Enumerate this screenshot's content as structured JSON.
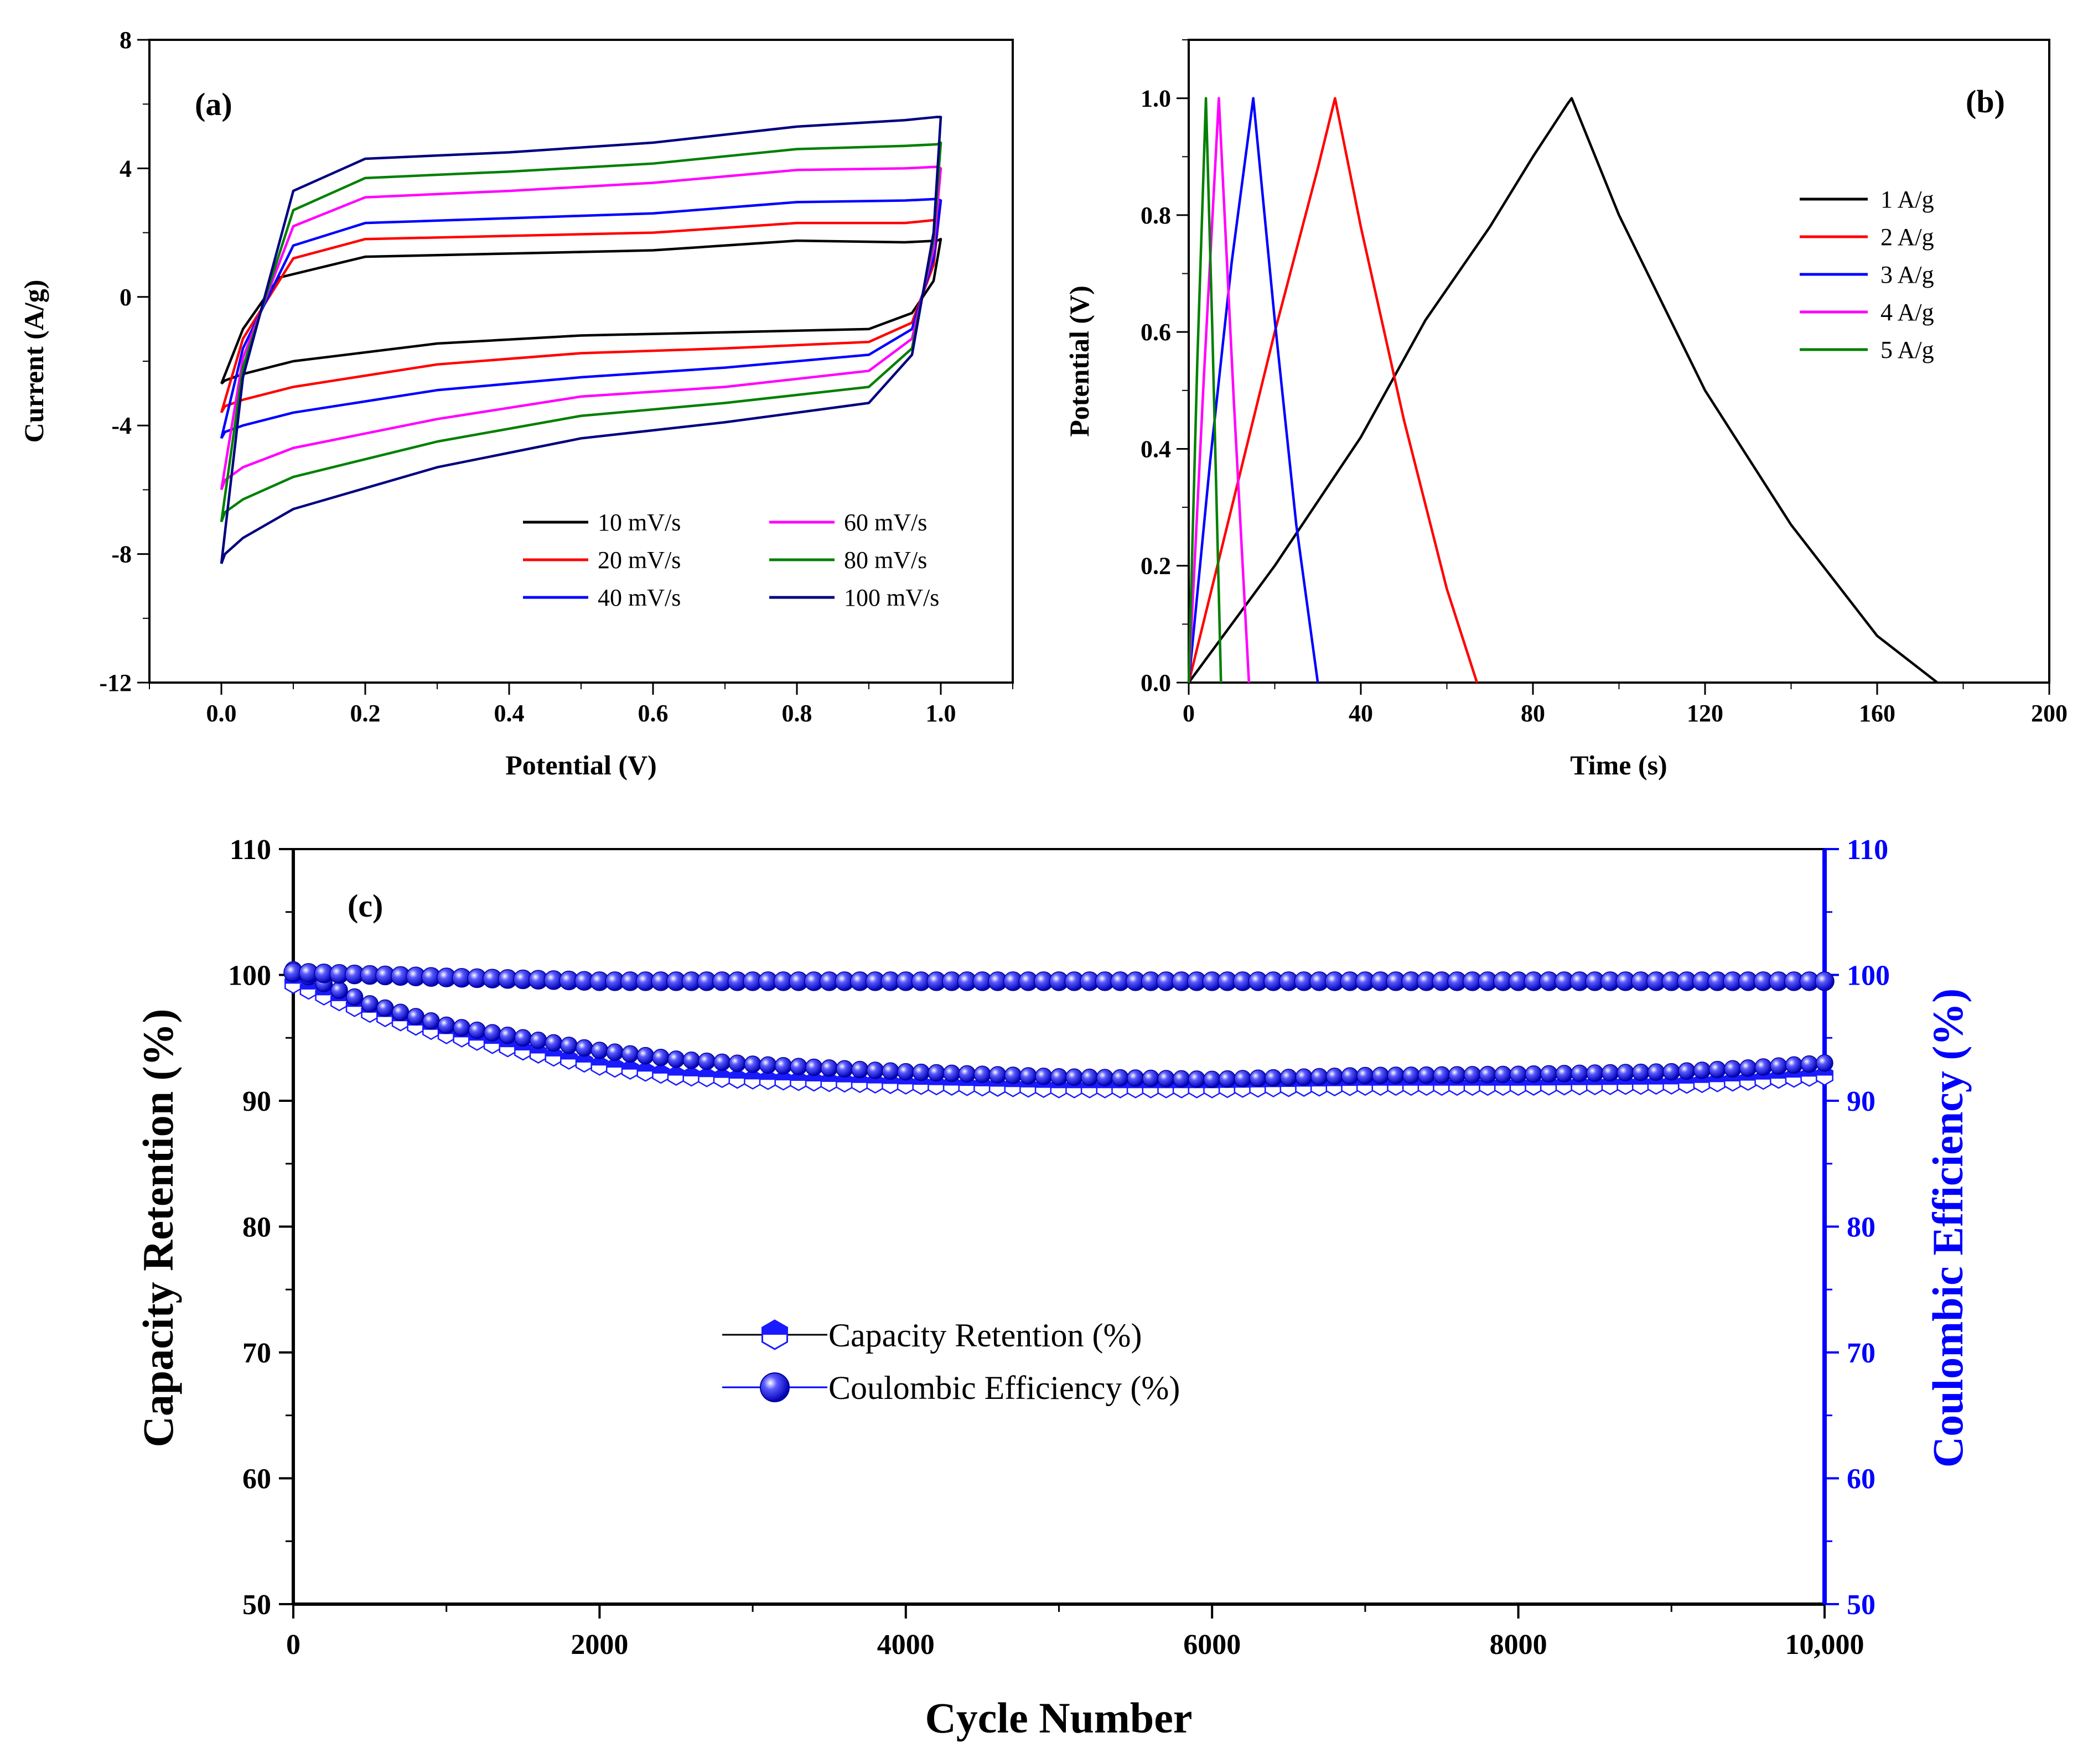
{
  "chart_data": [
    {
      "id": "a",
      "type": "line",
      "panel_label": "(a)",
      "xlabel": "Potential (V)",
      "ylabel": "Current (A/g)",
      "xlim": [
        -0.1,
        1.1
      ],
      "ylim": [
        -12,
        8
      ],
      "xticks": [
        0.0,
        0.2,
        0.4,
        0.6,
        0.8,
        1.0
      ],
      "xtick_labels": [
        "0.0",
        "0.2",
        "0.4",
        "0.6",
        "0.8",
        "1.0"
      ],
      "yticks": [
        -12,
        -8,
        -4,
        0,
        4,
        8
      ],
      "ytick_labels": [
        "-12",
        "-8",
        "-4",
        "0",
        "4",
        "8"
      ],
      "legend_position": "bottom-right",
      "series": [
        {
          "name": "10 mV/s",
          "color": "#000000",
          "x": [
            0.0,
            0.03,
            0.08,
            0.2,
            0.4,
            0.6,
            0.8,
            0.95,
            0.995,
            1.0,
            0.99,
            0.96,
            0.9,
            0.7,
            0.5,
            0.3,
            0.1,
            0.03,
            0.005,
            0.0
          ],
          "y": [
            -2.7,
            -1.0,
            0.6,
            1.25,
            1.35,
            1.45,
            1.75,
            1.7,
            1.75,
            1.8,
            0.5,
            -0.5,
            -1.0,
            -1.1,
            -1.2,
            -1.45,
            -2.0,
            -2.4,
            -2.6,
            -2.7
          ]
        },
        {
          "name": "20 mV/s",
          "color": "#ff0000",
          "x": [
            0.0,
            0.03,
            0.1,
            0.2,
            0.4,
            0.6,
            0.8,
            0.95,
            0.995,
            1.0,
            0.99,
            0.96,
            0.9,
            0.7,
            0.5,
            0.3,
            0.1,
            0.03,
            0.005,
            0.0
          ],
          "y": [
            -3.6,
            -1.3,
            1.2,
            1.8,
            1.9,
            2.0,
            2.3,
            2.3,
            2.4,
            3.0,
            1.0,
            -0.8,
            -1.4,
            -1.6,
            -1.75,
            -2.1,
            -2.8,
            -3.2,
            -3.4,
            -3.6
          ]
        },
        {
          "name": "40 mV/s",
          "color": "#0000ff",
          "x": [
            0.0,
            0.03,
            0.1,
            0.2,
            0.4,
            0.6,
            0.8,
            0.95,
            0.995,
            1.0,
            0.99,
            0.96,
            0.9,
            0.7,
            0.5,
            0.3,
            0.1,
            0.03,
            0.005,
            0.0
          ],
          "y": [
            -4.4,
            -1.6,
            1.6,
            2.3,
            2.45,
            2.6,
            2.95,
            3.0,
            3.05,
            3.0,
            1.2,
            -1.0,
            -1.8,
            -2.2,
            -2.5,
            -2.9,
            -3.6,
            -4.0,
            -4.2,
            -4.4
          ]
        },
        {
          "name": "60 mV/s",
          "color": "#ff00ff",
          "x": [
            0.0,
            0.03,
            0.1,
            0.2,
            0.4,
            0.6,
            0.8,
            0.95,
            0.995,
            1.0,
            0.99,
            0.96,
            0.9,
            0.7,
            0.5,
            0.3,
            0.1,
            0.03,
            0.005,
            0.0
          ],
          "y": [
            -6.0,
            -1.9,
            2.2,
            3.1,
            3.3,
            3.55,
            3.95,
            4.0,
            4.05,
            4.0,
            1.5,
            -1.3,
            -2.3,
            -2.8,
            -3.1,
            -3.8,
            -4.7,
            -5.3,
            -5.7,
            -6.0
          ]
        },
        {
          "name": "80 mV/s",
          "color": "#008000",
          "x": [
            0.0,
            0.03,
            0.1,
            0.2,
            0.4,
            0.6,
            0.8,
            0.95,
            0.995,
            1.0,
            0.99,
            0.96,
            0.9,
            0.7,
            0.5,
            0.3,
            0.1,
            0.03,
            0.005,
            0.0
          ],
          "y": [
            -7.0,
            -2.2,
            2.7,
            3.7,
            3.9,
            4.15,
            4.6,
            4.7,
            4.75,
            4.8,
            1.8,
            -1.6,
            -2.8,
            -3.3,
            -3.7,
            -4.5,
            -5.6,
            -6.3,
            -6.7,
            -7.0
          ]
        },
        {
          "name": "100 mV/s",
          "color": "#000080",
          "x": [
            0.0,
            0.03,
            0.1,
            0.2,
            0.4,
            0.6,
            0.8,
            0.95,
            0.995,
            1.0,
            0.99,
            0.96,
            0.9,
            0.7,
            0.5,
            0.3,
            0.1,
            0.03,
            0.005,
            0.0
          ],
          "y": [
            -8.3,
            -2.5,
            3.3,
            4.3,
            4.5,
            4.8,
            5.3,
            5.5,
            5.6,
            5.6,
            2.0,
            -1.8,
            -3.3,
            -3.9,
            -4.4,
            -5.3,
            -6.6,
            -7.5,
            -8.0,
            -8.3
          ]
        }
      ]
    },
    {
      "id": "b",
      "type": "line",
      "panel_label": "(b)",
      "xlabel": "Time (s)",
      "ylabel": "Potential (V)",
      "xlim": [
        0,
        200
      ],
      "ylim": [
        0,
        1.1
      ],
      "xticks": [
        0,
        40,
        80,
        120,
        160,
        200
      ],
      "xtick_labels": [
        "0",
        "40",
        "80",
        "120",
        "160",
        "200"
      ],
      "yticks": [
        0.0,
        0.2,
        0.4,
        0.6,
        0.8,
        1.0
      ],
      "ytick_labels": [
        "0.0",
        "0.2",
        "0.4",
        "0.6",
        "0.8",
        "1.0"
      ],
      "legend_position": "top-right",
      "series": [
        {
          "name": "1 A/g",
          "color": "#000000",
          "x": [
            0,
            20,
            40,
            55,
            70,
            80,
            88,
            89,
            100,
            120,
            140,
            160,
            174
          ],
          "y": [
            0,
            0.2,
            0.42,
            0.62,
            0.78,
            0.9,
            0.99,
            1.0,
            0.8,
            0.5,
            0.27,
            0.08,
            0
          ]
        },
        {
          "name": "2 A/g",
          "color": "#ff0000",
          "x": [
            0,
            10,
            20,
            30,
            34,
            40,
            50,
            60,
            67
          ],
          "y": [
            0,
            0.3,
            0.6,
            0.88,
            1.0,
            0.78,
            0.45,
            0.16,
            0
          ]
        },
        {
          "name": "3 A/g",
          "color": "#0000ff",
          "x": [
            0,
            5,
            10,
            15,
            20,
            25,
            30
          ],
          "y": [
            0,
            0.38,
            0.72,
            1.0,
            0.62,
            0.27,
            0
          ]
        },
        {
          "name": "4 A/g",
          "color": "#ff00ff",
          "x": [
            0,
            3.5,
            7,
            10.5,
            14
          ],
          "y": [
            0,
            0.52,
            1.0,
            0.48,
            0
          ]
        },
        {
          "name": "5 A/g",
          "color": "#008000",
          "x": [
            0,
            2,
            4,
            5.5,
            7.5
          ],
          "y": [
            0,
            0.55,
            1.0,
            0.6,
            0
          ]
        }
      ]
    },
    {
      "id": "c",
      "type": "scatter",
      "panel_label": "(c)",
      "xlabel": "Cycle Number",
      "ylabel": "Capacity Retention (%)",
      "ylabel_right": "Coulombic Efficiency (%)",
      "xlim": [
        0,
        10000
      ],
      "ylim": [
        50,
        110
      ],
      "xticks": [
        0,
        2000,
        4000,
        6000,
        8000,
        10000
      ],
      "xtick_labels": [
        "0",
        "2000",
        "4000",
        "6000",
        "8000",
        "10,000"
      ],
      "yticks": [
        50,
        60,
        70,
        80,
        90,
        100,
        110
      ],
      "ytick_labels": [
        "50",
        "60",
        "70",
        "80",
        "90",
        "100",
        "110"
      ],
      "right_axis_color": "#0000ff",
      "legend_position": "center",
      "series": [
        {
          "name": "Capacity Retention (%)",
          "color": "#1a1aff",
          "marker": "half-filled hexagon",
          "x": [
            0,
            500,
            1000,
            1500,
            2000,
            2500,
            3000,
            4000,
            5000,
            6000,
            7000,
            8000,
            9000,
            9500,
            10000
          ],
          "y": [
            99.3,
            97.0,
            95.3,
            94.0,
            92.8,
            92.0,
            91.7,
            91.3,
            91.0,
            91.0,
            91.2,
            91.2,
            91.3,
            91.6,
            92.0
          ]
        },
        {
          "name": "Coulombic Efficiency (%)",
          "color": "#0000ff",
          "marker": "sphere",
          "x": [
            0,
            1000,
            2000,
            3000,
            4000,
            5000,
            6000,
            7000,
            8000,
            9000,
            10000
          ],
          "y": [
            100.2,
            99.8,
            99.5,
            99.5,
            99.5,
            99.5,
            99.5,
            99.5,
            99.5,
            99.5,
            99.5
          ]
        }
      ],
      "overlay_series": {
        "name": "",
        "color": "#0000ff",
        "x": [
          0,
          500,
          1000,
          1500,
          2000,
          2500,
          3000,
          4000,
          5000,
          6000,
          7000,
          8000,
          9000,
          9500,
          10000
        ],
        "y": [
          100.4,
          97.7,
          96.0,
          95.0,
          94.0,
          93.3,
          92.9,
          92.3,
          91.9,
          91.7,
          92.0,
          92.1,
          92.3,
          92.6,
          93.0
        ]
      }
    }
  ]
}
